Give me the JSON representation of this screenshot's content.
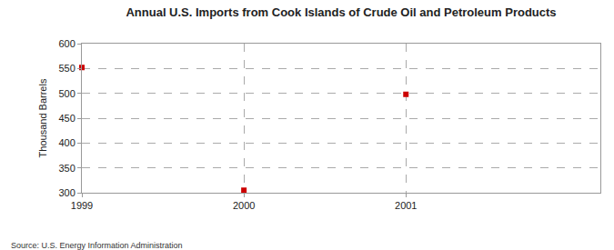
{
  "chart_data": {
    "type": "scatter",
    "title": "Annual U.S. Imports from Cook Islands of Crude Oil and Petroleum Products",
    "y_label": "Thousand Barrels",
    "annotations": [
      "Source: U.S. Energy Information Administration"
    ],
    "x": [
      1999,
      2000,
      2001
    ],
    "values": [
      552,
      305,
      498
    ],
    "color": "#cc0000",
    "marker": "square",
    "xlim": [
      1999,
      2002.2
    ],
    "xticks": [
      1999,
      2000,
      2001
    ],
    "ylim": [
      300,
      600
    ],
    "yticks": [
      300,
      350,
      400,
      450,
      500,
      550,
      600
    ],
    "grid": true
  }
}
